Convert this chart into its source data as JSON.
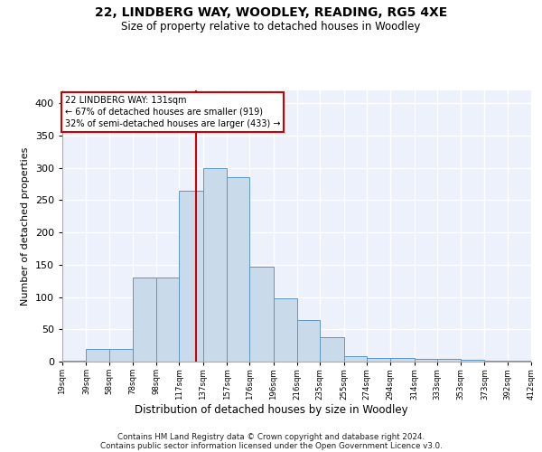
{
  "title": "22, LINDBERG WAY, WOODLEY, READING, RG5 4XE",
  "subtitle": "Size of property relative to detached houses in Woodley",
  "xlabel": "Distribution of detached houses by size in Woodley",
  "ylabel": "Number of detached properties",
  "bar_fill_color": "#c9daea",
  "bar_edge_color": "#5b96c8",
  "background_color": "#edf1fb",
  "grid_color": "#ffffff",
  "vline_x": 131,
  "vline_color": "#cc0000",
  "annotation_line1": "22 LINDBERG WAY: 131sqm",
  "annotation_line2": "← 67% of detached houses are smaller (919)",
  "annotation_line3": "32% of semi-detached houses are larger (433) →",
  "bin_edges": [
    19,
    39,
    58,
    78,
    98,
    117,
    137,
    157,
    176,
    196,
    216,
    235,
    255,
    274,
    294,
    314,
    333,
    353,
    373,
    392,
    412
  ],
  "bar_heights": [
    2,
    20,
    20,
    130,
    130,
    265,
    300,
    285,
    147,
    98,
    65,
    38,
    8,
    5,
    5,
    4,
    4,
    3,
    2,
    1
  ],
  "tick_labels": [
    "19sqm",
    "39sqm",
    "58sqm",
    "78sqm",
    "98sqm",
    "117sqm",
    "137sqm",
    "157sqm",
    "176sqm",
    "196sqm",
    "216sqm",
    "235sqm",
    "255sqm",
    "274sqm",
    "294sqm",
    "314sqm",
    "333sqm",
    "353sqm",
    "373sqm",
    "392sqm",
    "412sqm"
  ],
  "ylim": [
    0,
    420
  ],
  "yticks": [
    0,
    50,
    100,
    150,
    200,
    250,
    300,
    350,
    400
  ],
  "footer_line1": "Contains HM Land Registry data © Crown copyright and database right 2024.",
  "footer_line2": "Contains public sector information licensed under the Open Government Licence v3.0.",
  "title_fontsize": 10,
  "subtitle_fontsize": 8.5,
  "ylabel_fontsize": 8,
  "xlabel_fontsize": 8.5
}
